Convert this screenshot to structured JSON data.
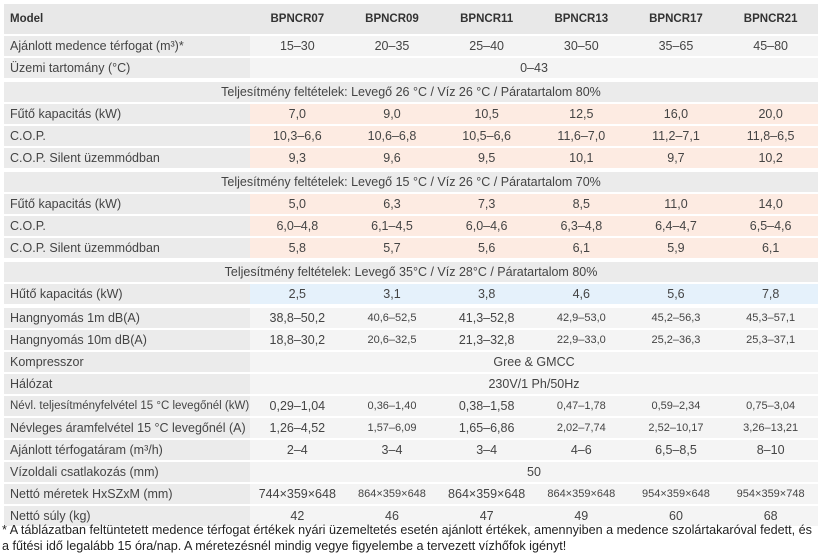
{
  "header": {
    "label": "Model",
    "models": [
      "BPNCR07",
      "BPNCR09",
      "BPNCR11",
      "BPNCR13",
      "BPNCR17",
      "BPNCR21"
    ]
  },
  "rows": [
    {
      "type": "row",
      "label": "Ajánlott medence térfogat (m³)*",
      "values": [
        "15–30",
        "20–35",
        "25–40",
        "30–50",
        "35–65",
        "45–80"
      ]
    },
    {
      "type": "row",
      "label": "Üzemi tartomány (°C)",
      "span": "0–43"
    },
    {
      "type": "sec",
      "label": "Teljesítmény feltételek: Levegő 26 °C / Víz 26 °C / Páratartalom 80%"
    },
    {
      "type": "row",
      "style": "heat",
      "label": "Fűtő kapacitás (kW)",
      "values": [
        "7,0",
        "9,0",
        "10,5",
        "12,5",
        "16,0",
        "20,0"
      ]
    },
    {
      "type": "row",
      "style": "heat",
      "label": "C.O.P.",
      "values": [
        "10,3–6,6",
        "10,6–6,8",
        "10,5–6,6",
        "11,6–7,0",
        "11,2–7,1",
        "11,8–6,5"
      ]
    },
    {
      "type": "row",
      "style": "heat",
      "label": "C.O.P. Silent üzemmódban",
      "values": [
        "9,3",
        "9,6",
        "9,5",
        "10,1",
        "9,7",
        "10,2"
      ]
    },
    {
      "type": "sec",
      "label": "Teljesítmény feltételek: Levegő 15 °C / Víz 26 °C / Páratartalom 70%"
    },
    {
      "type": "row",
      "style": "heat",
      "label": "Fűtő kapacitás (kW)",
      "values": [
        "5,0",
        "6,3",
        "7,3",
        "8,5",
        "11,0",
        "14,0"
      ]
    },
    {
      "type": "row",
      "style": "heat",
      "label": "C.O.P.",
      "values": [
        "6,0–4,8",
        "6,1–4,5",
        "6,0–4,6",
        "6,3–4,8",
        "6,4–4,7",
        "6,5–4,6"
      ]
    },
    {
      "type": "row",
      "style": "heat",
      "label": "C.O.P. Silent üzemmódban",
      "values": [
        "5,8",
        "5,7",
        "5,6",
        "6,1",
        "5,9",
        "6,1"
      ]
    },
    {
      "type": "sec",
      "label": "Teljesítmény feltételek: Levegő 35°C / Víz 28°C / Páratartalom 80%"
    },
    {
      "type": "row",
      "style": "cool",
      "label": "Hűtő kapacitás (kW)",
      "values": [
        "2,5",
        "3,1",
        "3,8",
        "4,6",
        "5,6",
        "7,8"
      ]
    },
    {
      "type": "gap"
    },
    {
      "type": "row",
      "label": "Hangnyomás 1m dB(A)",
      "values": [
        "38,8–50,2",
        "40,6–52,5",
        "41,3–52,8",
        "42,9–53,0",
        "45,2–56,3",
        "45,3–57,1"
      ]
    },
    {
      "type": "row",
      "label": "Hangnyomás 10m dB(A)",
      "values": [
        "18,8–30,2",
        "20,6–32,5",
        "21,3–32,8",
        "22,9–33,0",
        "25,2–36,3",
        "25,3–37,1"
      ]
    },
    {
      "type": "row",
      "label": "Kompresszor",
      "span": "Gree & GMCC"
    },
    {
      "type": "row",
      "label": "Hálózat",
      "span": "230V/1 Ph/50Hz"
    },
    {
      "type": "row",
      "small": true,
      "label": "Névl. teljesítményfelvétel 15 °C levegőnél (kW)",
      "values": [
        "0,29–1,04",
        "0,36–1,40",
        "0,38–1,58",
        "0,47–1,78",
        "0,59–2,34",
        "0,75–3,04"
      ]
    },
    {
      "type": "row",
      "label": "Névleges áramfelvétel 15 °C levegőnél (A)",
      "values": [
        "1,26–4,52",
        "1,57–6,09",
        "1,65–6,86",
        "2,02–7,74",
        "2,52–10,17",
        "3,26–13,21"
      ]
    },
    {
      "type": "row",
      "label": "Ajánlott térfogatáram (m³/h)",
      "values": [
        "2–4",
        "3–4",
        "3–4",
        "4–6",
        "6,5–8,5",
        "8–10"
      ]
    },
    {
      "type": "row",
      "label": "Vízoldali csatlakozás (mm)",
      "span": "50"
    },
    {
      "type": "row",
      "label": "Nettó méretek HxSZxM (mm)",
      "values": [
        "744×359×648",
        "864×359×648",
        "864×359×648",
        "864×359×648",
        "954×359×648",
        "954×359×748"
      ]
    },
    {
      "type": "row",
      "label": "Nettó súly (kg)",
      "values": [
        "42",
        "46",
        "47",
        "49",
        "60",
        "68"
      ]
    }
  ],
  "footnote": "* A táblázatban feltüntetett medence térfogat értékek nyári üzemeltetés esetén ajánlott értékek, amennyiben a medence szolártakaróval fedett, és a fűtési idő legalább 15 óra/nap. A méretezésnél mindig vegye figyelembe a tervezett vízhőfok igényt!"
}
